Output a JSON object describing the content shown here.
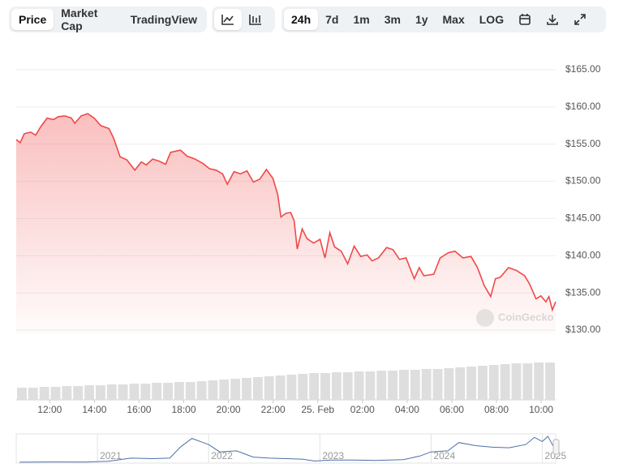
{
  "toolbar": {
    "views": [
      "Price",
      "Market Cap",
      "TradingView"
    ],
    "ranges": [
      "24h",
      "7d",
      "1m",
      "3m",
      "1y",
      "Max",
      "LOG"
    ]
  },
  "watermark": "CoinGecko",
  "chart_data": [
    {
      "type": "area",
      "color": "#f04848",
      "x": [
        10.5,
        10.68,
        10.86,
        11.15,
        11.37,
        11.59,
        11.88,
        12.17,
        12.39,
        12.68,
        12.97,
        13.12,
        13.41,
        13.7,
        13.99,
        14.28,
        14.65,
        14.86,
        15.15,
        15.45,
        15.81,
        16.1,
        16.32,
        16.61,
        16.9,
        17.19,
        17.41,
        17.85,
        18.14,
        18.5,
        18.86,
        19.15,
        19.45,
        19.74,
        19.95,
        20.25,
        20.54,
        20.83,
        21.12,
        21.41,
        21.7,
        21.99,
        22.21,
        22.35,
        22.57,
        22.79,
        22.94,
        23.08,
        23.3,
        23.52,
        23.81,
        24.1,
        24.32,
        24.54,
        24.75,
        25.05,
        25.34,
        25.63,
        25.92,
        26.21,
        26.43,
        26.72,
        27.08,
        27.37,
        27.66,
        27.95,
        28.32,
        28.54,
        28.75,
        29.19,
        29.48,
        29.85,
        30.14,
        30.5,
        30.86,
        31.15,
        31.45,
        31.74,
        31.95,
        32.17,
        32.54,
        32.9,
        33.26,
        33.48,
        33.77,
        33.99,
        34.21,
        34.35,
        34.5,
        34.65
      ],
      "values": [
        155.6,
        155.2,
        156.4,
        156.6,
        156.2,
        157.3,
        158.5,
        158.3,
        158.7,
        158.8,
        158.5,
        157.8,
        158.8,
        159.1,
        158.5,
        157.5,
        157.1,
        155.8,
        153.3,
        152.9,
        151.5,
        152.6,
        152.2,
        153.0,
        152.7,
        152.3,
        153.9,
        154.2,
        153.4,
        153.0,
        152.4,
        151.7,
        151.5,
        151.0,
        149.6,
        151.3,
        151.0,
        151.4,
        149.9,
        150.3,
        151.6,
        150.4,
        148.2,
        145.2,
        145.7,
        145.8,
        144.7,
        140.9,
        143.6,
        142.3,
        141.7,
        142.2,
        139.7,
        143.1,
        141.2,
        140.6,
        138.9,
        141.3,
        139.9,
        140.1,
        139.3,
        139.7,
        141.1,
        140.8,
        139.5,
        139.7,
        136.9,
        138.4,
        137.3,
        137.5,
        139.7,
        140.4,
        140.6,
        139.7,
        139.9,
        138.4,
        136.0,
        134.5,
        136.9,
        137.1,
        138.4,
        138.0,
        137.3,
        136.2,
        134.2,
        134.6,
        133.8,
        134.5,
        132.7,
        133.8
      ],
      "xlim": [
        10.5,
        34.65
      ],
      "xticks": [
        {
          "value": 12,
          "label": "12:00"
        },
        {
          "value": 14,
          "label": "14:00"
        },
        {
          "value": 16,
          "label": "16:00"
        },
        {
          "value": 18,
          "label": "18:00"
        },
        {
          "value": 20,
          "label": "20:00"
        },
        {
          "value": 22,
          "label": "22:00"
        },
        {
          "value": 24,
          "label": "25. Feb"
        },
        {
          "value": 26,
          "label": "02:00"
        },
        {
          "value": 28,
          "label": "04:00"
        },
        {
          "value": 30,
          "label": "06:00"
        },
        {
          "value": 32,
          "label": "08:00"
        },
        {
          "value": 34,
          "label": "10:00"
        }
      ],
      "ylim": [
        130,
        165
      ],
      "yticks": [
        {
          "value": 130,
          "label": "$130.00"
        },
        {
          "value": 135,
          "label": "$135.00"
        },
        {
          "value": 140,
          "label": "$140.00"
        },
        {
          "value": 145,
          "label": "$145.00"
        },
        {
          "value": 150,
          "label": "$150.00"
        },
        {
          "value": 155,
          "label": "$155.00"
        },
        {
          "value": 160,
          "label": "$160.00"
        },
        {
          "value": 165,
          "label": "$165.00"
        }
      ],
      "grid": true
    },
    {
      "type": "bar",
      "color": "#dedede",
      "values": [
        15,
        15,
        16,
        16,
        17,
        17,
        18,
        18,
        19,
        19,
        20,
        20,
        21,
        21,
        22,
        22,
        23,
        24,
        25,
        26,
        27,
        28,
        29,
        30,
        31,
        32,
        33,
        33,
        34,
        34,
        35,
        35,
        36,
        36,
        37,
        37,
        38,
        38,
        39,
        40,
        41,
        42,
        43,
        44,
        45,
        45,
        46,
        46
      ]
    },
    {
      "type": "line",
      "color": "#4d6fa8",
      "x": [
        2020.3,
        2020.6,
        2020.9,
        2021.1,
        2021.3,
        2021.5,
        2021.65,
        2021.75,
        2021.85,
        2021.95,
        2022.0,
        2022.1,
        2022.25,
        2022.4,
        2022.55,
        2022.7,
        2022.85,
        2022.95,
        2023.1,
        2023.3,
        2023.5,
        2023.75,
        2023.9,
        2024.0,
        2024.15,
        2024.25,
        2024.4,
        2024.55,
        2024.7,
        2024.85,
        2024.93,
        2025.0,
        2025.05,
        2025.1
      ],
      "values": [
        1,
        3,
        2,
        10,
        40,
        35,
        40,
        150,
        230,
        190,
        170,
        100,
        110,
        50,
        40,
        35,
        30,
        12,
        22,
        21,
        18,
        25,
        60,
        100,
        110,
        190,
        160,
        145,
        140,
        170,
        240,
        200,
        250,
        150
      ],
      "xlim": [
        2020.27,
        2025.12
      ],
      "xticks": [
        2021,
        2022,
        2023,
        2024,
        2025
      ]
    }
  ]
}
